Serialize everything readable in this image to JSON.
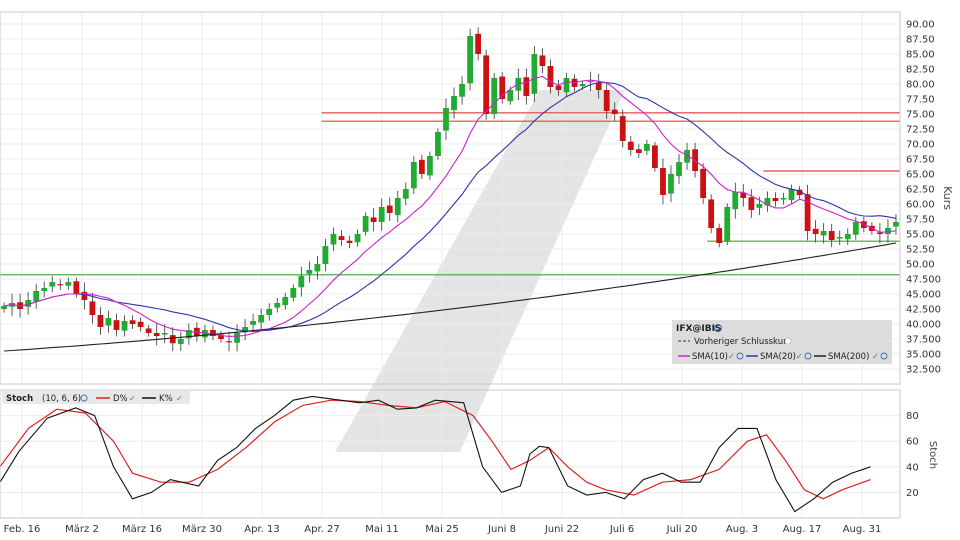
{
  "chart_data": [
    {
      "type": "candlestick",
      "instrument": "IFX@IBIS",
      "ylabel": "Kurs",
      "ylim": [
        30.0,
        92.0
      ],
      "y_ticks": [
        "32.500",
        "35.000",
        "37.500",
        "40.000",
        "42.500",
        "45.000",
        "47.500",
        "50.00",
        "52.50",
        "55.00",
        "57.50",
        "60.00",
        "62.50",
        "65.00",
        "67.50",
        "70.00",
        "72.50",
        "75.00",
        "77.50",
        "80.00",
        "82.50",
        "85.00",
        "87.50",
        "90.00"
      ],
      "x_labels": [
        "Feb. 16",
        "März 2",
        "März 16",
        "März 30",
        "Apr. 13",
        "Apr. 27",
        "Mai 11",
        "Mai 25",
        "Juni 8",
        "Juni 22",
        "Juli 6",
        "Juli 20",
        "Aug. 3",
        "Aug. 17",
        "Aug. 31"
      ],
      "grid": true,
      "legend_position": "bottom-right",
      "legend": {
        "title": "IFX@IBIS",
        "prev_close": "Vorheriger Schlusskurs",
        "items": [
          {
            "name": "SMA(10)",
            "color": "#cc22cc"
          },
          {
            "name": "SMA(20)",
            "color": "#3333aa"
          },
          {
            "name": "SMA(200)",
            "color": "#222222"
          }
        ]
      },
      "colors": {
        "up": "#22aa33",
        "down": "#cc1111",
        "resistance": "#dd4444",
        "support": "#33aa33"
      },
      "closes": [
        43,
        43.5,
        42.5,
        44,
        45.5,
        46,
        47,
        46.5,
        47,
        45,
        44,
        41.5,
        39.5,
        41,
        39,
        40.5,
        40,
        39.5,
        38.5,
        38,
        38.5,
        36.8,
        37.5,
        39,
        38,
        39,
        38,
        37.5,
        37,
        38.5,
        39.5,
        40.5,
        41.5,
        42.5,
        43.5,
        44.5,
        46,
        48,
        49,
        50,
        53,
        55,
        54,
        53.5,
        55,
        58,
        57,
        59.5,
        58.5,
        61,
        62.5,
        67,
        65,
        68,
        72,
        76,
        78,
        80,
        88,
        85,
        75,
        81,
        77.5,
        79,
        81,
        78,
        85,
        83,
        79.5,
        79,
        81,
        79.5,
        80,
        80.5,
        79,
        75.5,
        75,
        70.5,
        69,
        68.5,
        70,
        66,
        61.5,
        65,
        67,
        69,
        65.5,
        61,
        56,
        53.5,
        59.5,
        62,
        61,
        59,
        60,
        61,
        60.5,
        61,
        62.5,
        61.5,
        55.5,
        55,
        55.5,
        54,
        54.5,
        55,
        57,
        56,
        55.5,
        55,
        56,
        57
      ],
      "horizontal_lines": [
        {
          "value": 75.2,
          "kind": "resistance",
          "from_bar": 40
        },
        {
          "value": 73.8,
          "kind": "resistance",
          "from_bar": 40
        },
        {
          "value": 65.5,
          "kind": "resistance",
          "from_bar": 95
        },
        {
          "value": 53.8,
          "kind": "support",
          "from_bar": 88
        },
        {
          "value": 48.2,
          "kind": "support",
          "from_bar": 0
        }
      ],
      "sma200": {
        "start": 35.5,
        "end": 53.5
      }
    },
    {
      "type": "line",
      "indicator": "Stoch",
      "params": "(10, 6, 6)",
      "ylabel": "Stoch",
      "ylim": [
        0,
        100
      ],
      "y_ticks": [
        "20",
        "40",
        "60",
        "80"
      ],
      "series": [
        {
          "name": "D%",
          "color": "#dd2222"
        },
        {
          "name": "K%",
          "color": "#111111"
        }
      ],
      "k_points": [
        [
          0,
          28
        ],
        [
          2,
          52
        ],
        [
          5,
          78
        ],
        [
          8,
          86
        ],
        [
          10,
          80
        ],
        [
          12,
          40
        ],
        [
          14,
          15
        ],
        [
          16,
          20
        ],
        [
          18,
          30
        ],
        [
          21,
          25
        ],
        [
          23,
          45
        ],
        [
          25,
          55
        ],
        [
          27,
          70
        ],
        [
          29,
          80
        ],
        [
          31,
          92
        ],
        [
          33,
          95
        ],
        [
          36,
          92
        ],
        [
          38,
          90
        ],
        [
          40,
          92
        ],
        [
          42,
          85
        ],
        [
          44,
          86
        ],
        [
          46,
          92
        ],
        [
          49,
          90
        ],
        [
          51,
          40
        ],
        [
          53,
          20
        ],
        [
          55,
          25
        ],
        [
          56,
          50
        ],
        [
          57,
          56
        ],
        [
          58,
          55
        ],
        [
          60,
          25
        ],
        [
          62,
          18
        ],
        [
          64,
          20
        ],
        [
          66,
          15
        ],
        [
          68,
          30
        ],
        [
          70,
          35
        ],
        [
          72,
          28
        ],
        [
          74,
          28
        ],
        [
          76,
          55
        ],
        [
          78,
          70
        ],
        [
          80,
          70
        ],
        [
          82,
          30
        ],
        [
          84,
          5
        ],
        [
          86,
          15
        ],
        [
          88,
          28
        ],
        [
          90,
          35
        ],
        [
          92,
          40
        ]
      ],
      "d_points": [
        [
          0,
          40
        ],
        [
          3,
          70
        ],
        [
          6,
          85
        ],
        [
          9,
          82
        ],
        [
          12,
          60
        ],
        [
          14,
          35
        ],
        [
          17,
          28
        ],
        [
          20,
          28
        ],
        [
          23,
          38
        ],
        [
          26,
          55
        ],
        [
          29,
          75
        ],
        [
          32,
          88
        ],
        [
          35,
          92
        ],
        [
          38,
          91
        ],
        [
          41,
          88
        ],
        [
          44,
          86
        ],
        [
          47,
          91
        ],
        [
          50,
          80
        ],
        [
          52,
          60
        ],
        [
          54,
          38
        ],
        [
          56,
          45
        ],
        [
          58,
          55
        ],
        [
          60,
          40
        ],
        [
          62,
          28
        ],
        [
          64,
          22
        ],
        [
          67,
          18
        ],
        [
          70,
          28
        ],
        [
          73,
          30
        ],
        [
          76,
          38
        ],
        [
          79,
          60
        ],
        [
          81,
          65
        ],
        [
          83,
          45
        ],
        [
          85,
          22
        ],
        [
          87,
          15
        ],
        [
          89,
          22
        ],
        [
          92,
          30
        ]
      ]
    }
  ]
}
